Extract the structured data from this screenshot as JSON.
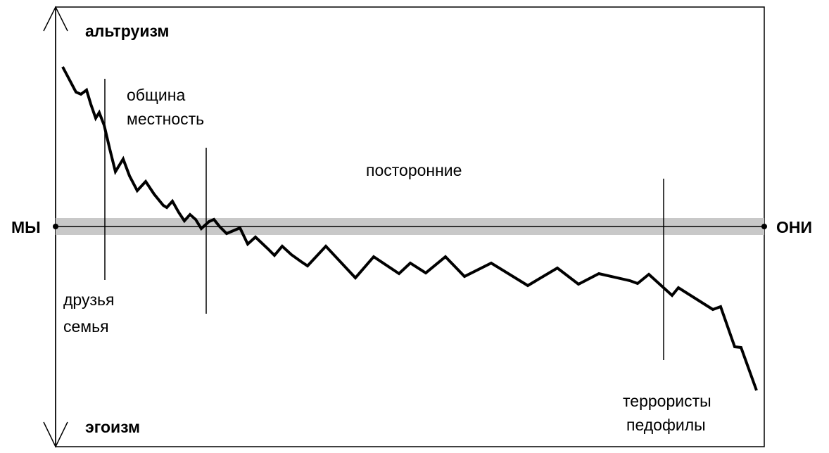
{
  "labels": {
    "top": "альтруизм",
    "bottom": "эгоизм",
    "left": "МЫ",
    "right": "ОНИ"
  },
  "zones": [
    {
      "id": "friends-family",
      "lines": [
        "друзья",
        "семья"
      ]
    },
    {
      "id": "community-locality",
      "lines": [
        "община",
        "местность"
      ]
    },
    {
      "id": "outsiders",
      "lines": [
        "посторонние"
      ]
    },
    {
      "id": "terrorists-pedophiles",
      "lines": [
        "террористы",
        "педофилы"
      ]
    }
  ],
  "colors": {
    "line": "#000000",
    "band": "#c8c8c8",
    "background": "#ffffff"
  }
}
